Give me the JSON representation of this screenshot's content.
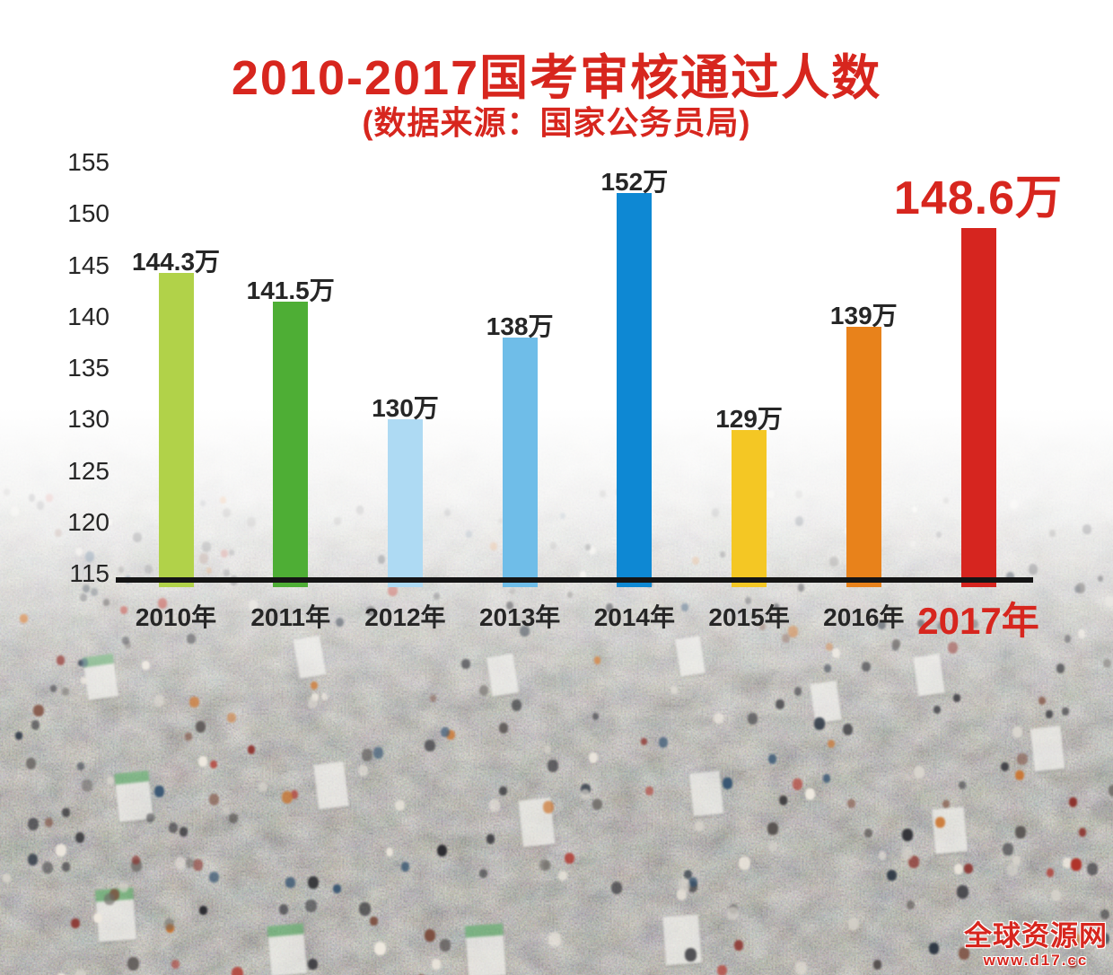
{
  "title": "2010-2017国考审核通过人数",
  "subtitle": "(数据来源：国家公务员局)",
  "chart_data": {
    "type": "bar",
    "title": "2010-2017国考审核通过人数",
    "subtitle": "(数据来源：国家公务员局)",
    "categories": [
      "2010年",
      "2011年",
      "2012年",
      "2013年",
      "2014年",
      "2015年",
      "2016年",
      "2017年"
    ],
    "values": [
      144.3,
      141.5,
      130,
      138,
      152,
      129,
      139,
      148.6
    ],
    "value_labels": [
      "144.3万",
      "141.5万",
      "130万",
      "138万",
      "152万",
      "129万",
      "139万",
      "148.6万"
    ],
    "unit": "万",
    "bar_colors": [
      "#b1d249",
      "#4eae35",
      "#aedaf3",
      "#6fbde8",
      "#0e88d3",
      "#f4c724",
      "#e8821b",
      "#d6251f"
    ],
    "highlight_index": 7,
    "y_axis": {
      "min": 115,
      "max": 155,
      "step": 5,
      "ticks": [
        155,
        150,
        145,
        140,
        135,
        130,
        125,
        120,
        115
      ]
    },
    "grid": false,
    "legend": false,
    "xlabel": "",
    "ylabel": ""
  },
  "colors": {
    "accent_red": "#d7261e",
    "text_dark": "#262626",
    "axis_black": "#141414"
  },
  "watermark": {
    "site_name": "全球资源网",
    "site_url": "www.d17.cc"
  }
}
